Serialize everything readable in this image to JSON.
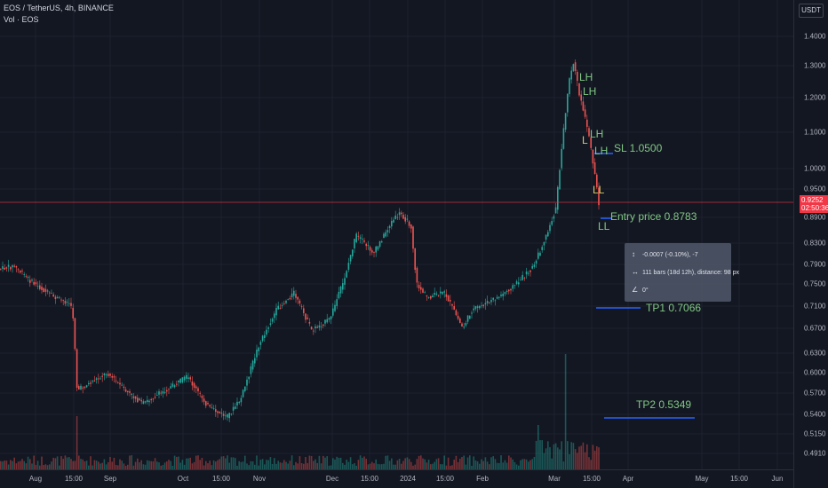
{
  "header": {
    "symbol_line": "EOS / TetherUS, 4h, BINANCE",
    "volume_line": "Vol · EOS"
  },
  "currency": "USDT",
  "price_axis": {
    "ticks": [
      "1.4000",
      "1.3000",
      "1.2000",
      "1.1000",
      "1.0000",
      "0.9500",
      "0.8900",
      "0.8300",
      "0.7900",
      "0.7500",
      "0.7100",
      "0.6700",
      "0.6300",
      "0.6000",
      "0.5700",
      "0.5400",
      "0.5150",
      "0.4910"
    ]
  },
  "current_price": {
    "value": "0.9252",
    "countdown": "02:50:36"
  },
  "time_axis": {
    "labels": [
      "Aug",
      "15:00",
      "Sep",
      "Oct",
      "15:00",
      "Nov",
      "Dec",
      "15:00",
      "2024",
      "15:00",
      "Feb",
      "Mar",
      "15:00",
      "Apr",
      "May",
      "15:00",
      "Jun"
    ]
  },
  "annotations": {
    "sl": "SL 1.0500",
    "entry": "Entry price 0.8783",
    "tp1": "TP1 0.7066",
    "tp2": "TP2 0.5349",
    "lh": "LH",
    "ll": "LL",
    "l": "L"
  },
  "measure": {
    "price_change": "-0.0007 (-0.10%), -7",
    "bars_info": "111 bars (18d 12h), distance: 98 px",
    "angle": "0°"
  },
  "colors": {
    "background": "#131722",
    "up": "#26a69a",
    "down": "#ef5350",
    "annotation_green": "#81c784",
    "annotation_yellow": "#d6c86b",
    "level_blue": "#2962ff",
    "price_line": "#f23645"
  }
}
